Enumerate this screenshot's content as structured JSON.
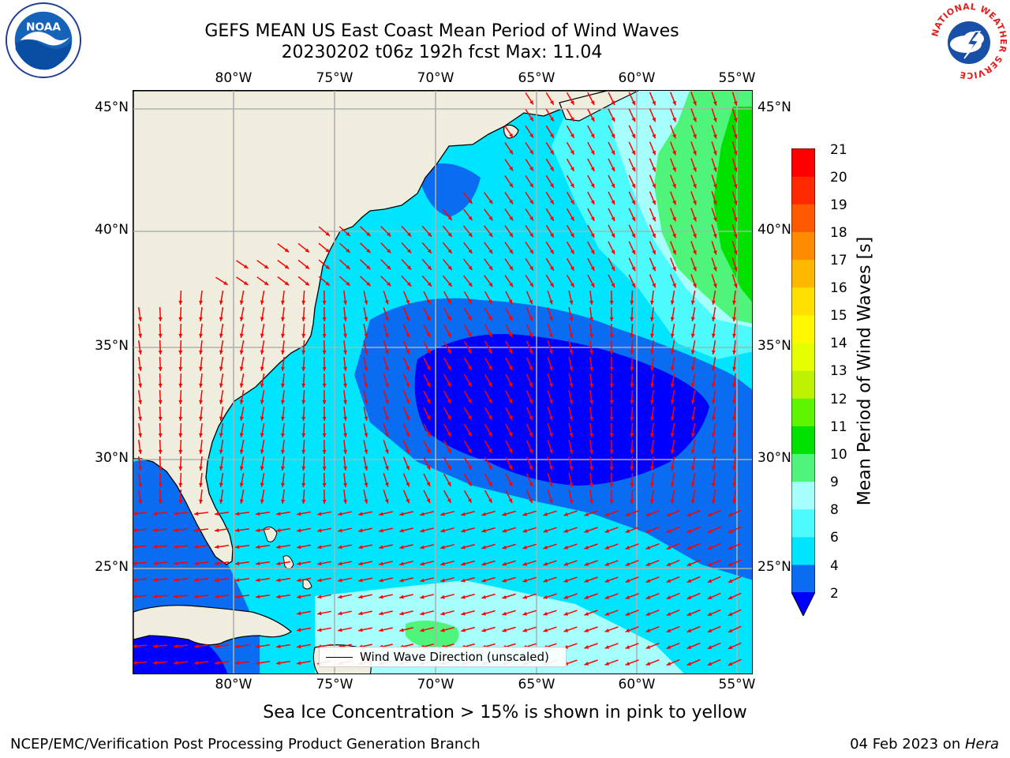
{
  "header": {
    "title_line1": "GEFS MEAN US East Coast Mean Period of Wind Waves",
    "title_line2": "20230202 t06z 192h fcst   Max: 11.04"
  },
  "map": {
    "lon_labels": [
      "80°W",
      "75°W",
      "70°W",
      "65°W",
      "60°W",
      "55°W"
    ],
    "lat_labels": [
      "45°N",
      "40°N",
      "35°N",
      "30°N",
      "25°N"
    ],
    "legend_label": "Wind Wave Direction (unscaled)",
    "arrow_color": "#ff0000",
    "land_color": "#efedde",
    "grid_color": "#b0b0b0"
  },
  "colorbar": {
    "label": "Mean Period of Wind Waves [s]",
    "ticks": [
      "2",
      "4",
      "6",
      "8",
      "9",
      "10",
      "11",
      "12",
      "13",
      "14",
      "15",
      "16",
      "17",
      "18",
      "19",
      "20",
      "21"
    ],
    "colors": [
      "#0a6cf0",
      "#00e5ff",
      "#4dfbff",
      "#a6fffd",
      "#4ff57a",
      "#00e100",
      "#5ff500",
      "#bff200",
      "#e6ff00",
      "#fff800",
      "#ffe000",
      "#ffb800",
      "#ff8c00",
      "#ff5a00",
      "#ff2a00",
      "#ff0000"
    ],
    "under_color": "#0000ff"
  },
  "footer": {
    "sea_ice_note": "Sea Ice Concentration > 15% is shown in pink to yellow",
    "left": "NCEP/EMC/Verification Post Processing Product Generation Branch",
    "right_date": "04 Feb 2023 on ",
    "right_host": "Hera"
  },
  "logos": {
    "noaa_text": "NOAA",
    "nws_text": "NATIONAL WEATHER SERVICE"
  }
}
